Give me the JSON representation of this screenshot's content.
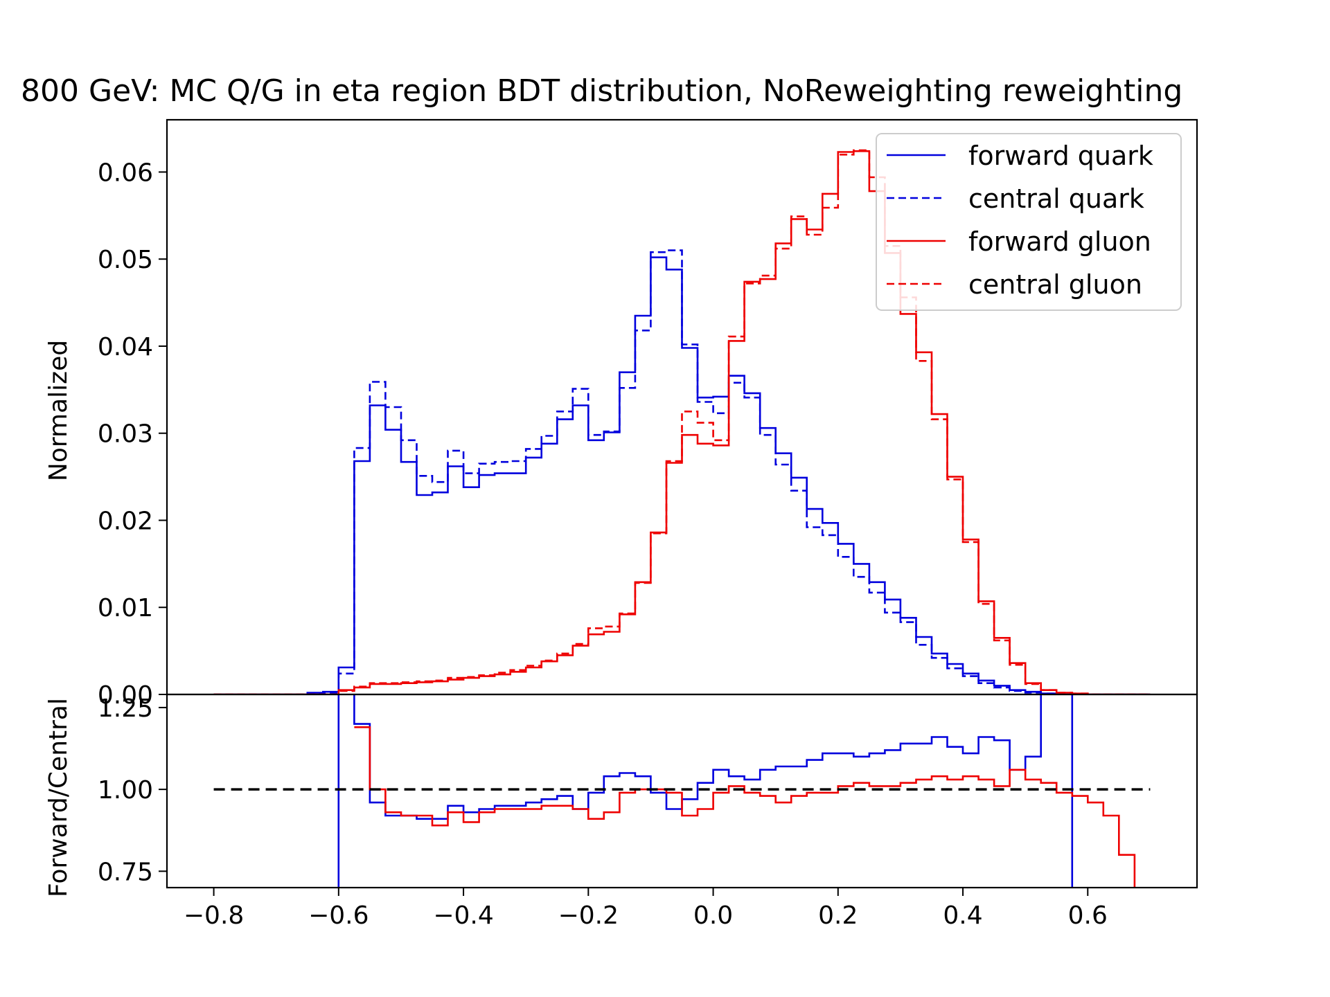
{
  "chart_data": {
    "type": "line",
    "title": "800 GeV: MC Q/G in eta region BDT distribution, NoReweighting reweighting",
    "bin_width": 0.025,
    "bins_start": -0.8,
    "top_panel": {
      "ylabel": "Normalized",
      "ylim": [
        0,
        0.066
      ],
      "yticks": [
        "0.00",
        "0.01",
        "0.02",
        "0.03",
        "0.04",
        "0.05",
        "0.06"
      ],
      "ytick_values": [
        0,
        0.01,
        0.02,
        0.03,
        0.04,
        0.05,
        0.06
      ],
      "series": [
        {
          "name": "forward quark",
          "color": "#0000dd",
          "dash": "solid",
          "values": [
            0,
            0,
            0,
            0,
            0,
            0,
            0.0002,
            0.0003,
            0.0031,
            0.0268,
            0.0332,
            0.0304,
            0.0267,
            0.0229,
            0.0232,
            0.0262,
            0.0238,
            0.0252,
            0.0254,
            0.0254,
            0.0272,
            0.0288,
            0.0316,
            0.0332,
            0.0292,
            0.0301,
            0.037,
            0.0435,
            0.0502,
            0.0488,
            0.0398,
            0.0341,
            0.0342,
            0.0366,
            0.0346,
            0.0306,
            0.0277,
            0.0249,
            0.0213,
            0.0197,
            0.0173,
            0.015,
            0.0129,
            0.0109,
            0.0088,
            0.0066,
            0.0047,
            0.0035,
            0.0024,
            0.0016,
            0.001,
            0.0005,
            0.0003,
            0.0001,
            0,
            0,
            0,
            0,
            0,
            0
          ]
        },
        {
          "name": "central quark",
          "color": "#0000dd",
          "dash": "dashed",
          "values": [
            0,
            0,
            0,
            0,
            0,
            0,
            0.0001,
            0.0002,
            0.0024,
            0.0283,
            0.0359,
            0.033,
            0.0292,
            0.0251,
            0.0244,
            0.028,
            0.0254,
            0.0265,
            0.0267,
            0.0268,
            0.0282,
            0.0297,
            0.0325,
            0.0351,
            0.0298,
            0.0302,
            0.0352,
            0.0418,
            0.0508,
            0.051,
            0.0402,
            0.0336,
            0.0323,
            0.0358,
            0.0341,
            0.0298,
            0.0264,
            0.0234,
            0.0192,
            0.0183,
            0.0158,
            0.0135,
            0.0117,
            0.0094,
            0.0083,
            0.0057,
            0.0042,
            0.003,
            0.0021,
            0.0013,
            0.0008,
            0.0004,
            0.0002,
            0.0001,
            0,
            0,
            0,
            0,
            0,
            0
          ]
        },
        {
          "name": "forward gluon",
          "color": "#ee0000",
          "dash": "solid",
          "values": [
            0,
            0,
            0,
            0,
            0,
            0,
            0,
            0,
            0.0005,
            0.0008,
            0.0012,
            0.0012,
            0.0013,
            0.0014,
            0.0015,
            0.0017,
            0.0019,
            0.0021,
            0.0023,
            0.0026,
            0.0031,
            0.0038,
            0.0045,
            0.0056,
            0.0069,
            0.0072,
            0.0092,
            0.0129,
            0.0186,
            0.0266,
            0.0298,
            0.0288,
            0.0286,
            0.0406,
            0.0474,
            0.0477,
            0.0518,
            0.0546,
            0.0534,
            0.0575,
            0.0623,
            0.0624,
            0.0578,
            0.0507,
            0.0437,
            0.0393,
            0.0322,
            0.025,
            0.0178,
            0.0107,
            0.0065,
            0.0036,
            0.0013,
            0.0005,
            0.0002,
            0.0001,
            0,
            0,
            0,
            0
          ]
        },
        {
          "name": "central gluon",
          "color": "#ee0000",
          "dash": "dashed",
          "values": [
            0,
            0,
            0,
            0,
            0,
            0,
            0,
            0,
            0.0004,
            0.0009,
            0.0013,
            0.0013,
            0.0014,
            0.0015,
            0.0016,
            0.0019,
            0.002,
            0.0022,
            0.0025,
            0.0028,
            0.0033,
            0.0039,
            0.0047,
            0.0058,
            0.0076,
            0.0078,
            0.0093,
            0.0128,
            0.0185,
            0.0268,
            0.0325,
            0.0312,
            0.0292,
            0.0411,
            0.0472,
            0.0481,
            0.0512,
            0.0549,
            0.0528,
            0.0559,
            0.062,
            0.0625,
            0.0594,
            0.0515,
            0.0456,
            0.0383,
            0.0316,
            0.0247,
            0.0175,
            0.0104,
            0.0062,
            0.0034,
            0.0012,
            0.0005,
            0.0002,
            0.0001,
            0,
            0,
            0,
            0
          ]
        }
      ]
    },
    "ratio_panel": {
      "ylabel": "Forward/Central",
      "ylim": [
        0.7,
        1.29
      ],
      "yticks": [
        "0.75",
        "1.00",
        "1.25"
      ],
      "ytick_values": [
        0.75,
        1.0,
        1.25
      ],
      "reference_line": 1.0,
      "reference_range": [
        -0.8,
        0.7
      ],
      "series": [
        {
          "name": "quark ratio",
          "color": "#0000dd",
          "start": -0.625,
          "values": [
            0.62,
            1.5,
            1.2,
            0.96,
            0.92,
            0.92,
            0.91,
            0.91,
            0.95,
            0.93,
            0.94,
            0.95,
            0.95,
            0.96,
            0.97,
            0.98,
            0.94,
            0.99,
            1.04,
            1.05,
            1.04,
            0.99,
            0.94,
            0.97,
            1.02,
            1.06,
            1.04,
            1.03,
            1.06,
            1.07,
            1.07,
            1.09,
            1.11,
            1.11,
            1.1,
            1.11,
            1.12,
            1.14,
            1.14,
            1.16,
            1.13,
            1.11,
            1.16,
            1.15,
            1.06,
            1.1,
            1.55,
            1.6,
            0.5
          ]
        },
        {
          "name": "gluon ratio",
          "color": "#ee0000",
          "start": -0.575,
          "values": [
            1.19,
            1.0,
            0.93,
            0.92,
            0.92,
            0.89,
            0.93,
            0.9,
            0.93,
            0.94,
            0.94,
            0.94,
            0.95,
            0.95,
            0.94,
            0.91,
            0.93,
            0.99,
            1.0,
            1.0,
            0.99,
            0.92,
            0.94,
            0.99,
            1.01,
            0.99,
            0.98,
            0.96,
            0.98,
            0.99,
            0.99,
            1.01,
            1.02,
            1.01,
            1.01,
            1.02,
            1.03,
            1.04,
            1.03,
            1.04,
            1.03,
            1.01,
            1.06,
            1.03,
            1.02,
            0.99,
            0.98,
            0.96,
            0.92,
            0.8,
            0.5
          ]
        }
      ]
    },
    "x": {
      "xlim": [
        -0.875,
        0.775
      ],
      "xticks": [
        "−0.8",
        "−0.6",
        "−0.4",
        "−0.2",
        "0.0",
        "0.2",
        "0.4",
        "0.6"
      ],
      "xtick_values": [
        -0.8,
        -0.6,
        -0.4,
        -0.2,
        0.0,
        0.2,
        0.4,
        0.6
      ]
    },
    "legend": {
      "placement": "top-right",
      "entries": [
        "forward quark",
        "central quark",
        "forward gluon",
        "central gluon"
      ]
    }
  }
}
